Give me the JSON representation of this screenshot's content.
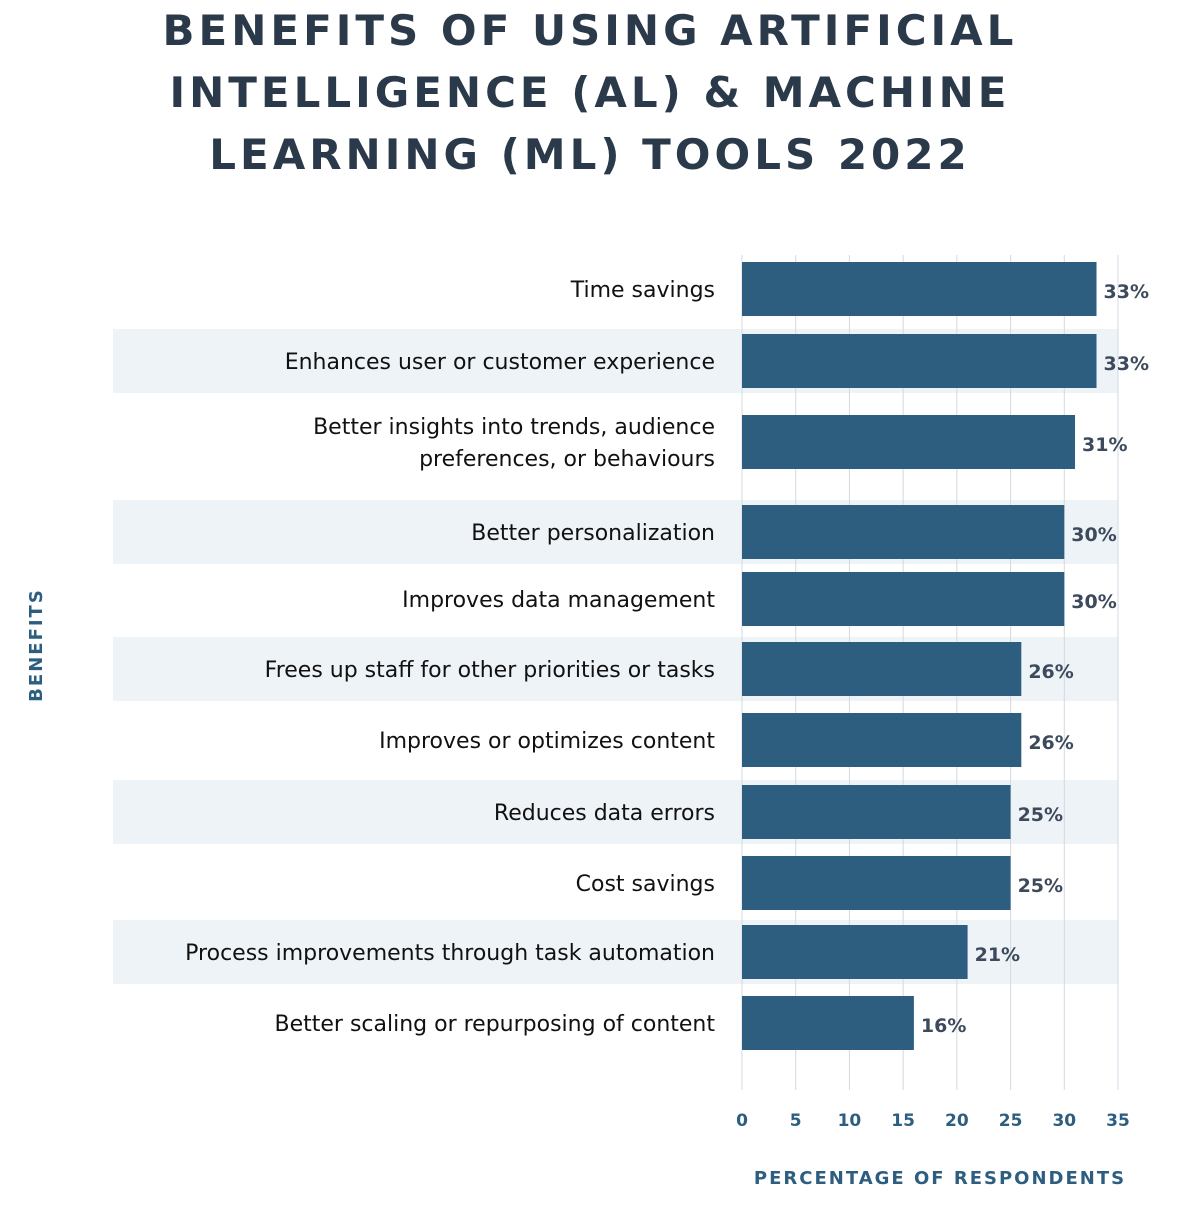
{
  "chart_data": {
    "type": "bar",
    "orientation": "horizontal",
    "title_lines": [
      "BENEFITS OF USING ARTIFICIAL",
      "INTELLIGENCE (AL) & MACHINE",
      "LEARNING (ML) TOOLS 2022"
    ],
    "categories": [
      [
        "Time savings"
      ],
      [
        "Enhances user or customer experience"
      ],
      [
        "Better insights into trends, audience",
        "preferences, or behaviours"
      ],
      [
        "Better personalization"
      ],
      [
        "Improves data management"
      ],
      [
        "Frees up staff for other priorities or tasks"
      ],
      [
        "Improves or optimizes content"
      ],
      [
        "Reduces data errors"
      ],
      [
        "Cost savings"
      ],
      [
        "Process improvements through task automation"
      ],
      [
        "Better scaling or repurposing of content"
      ]
    ],
    "values": [
      33,
      33,
      31,
      30,
      30,
      26,
      26,
      25,
      25,
      21,
      16
    ],
    "value_labels": [
      "33%",
      "33%",
      "31%",
      "30%",
      "30%",
      "26%",
      "26%",
      "25%",
      "25%",
      "21%",
      "16%"
    ],
    "xlabel": "PERCENTAGE OF RESPONDENTS",
    "ylabel": "BENEFITS",
    "xlim": [
      0,
      35
    ],
    "xticks": [
      0,
      5,
      10,
      15,
      20,
      25,
      30,
      35
    ],
    "grid": true,
    "legend": "none",
    "colors": {
      "bar": "#2d5e80",
      "title": "#2b3a4a",
      "axis_text": "#2d5e80",
      "value_text": "#3d4a5c",
      "band": "#eef3f8",
      "grid": "#d3d9e0"
    }
  }
}
